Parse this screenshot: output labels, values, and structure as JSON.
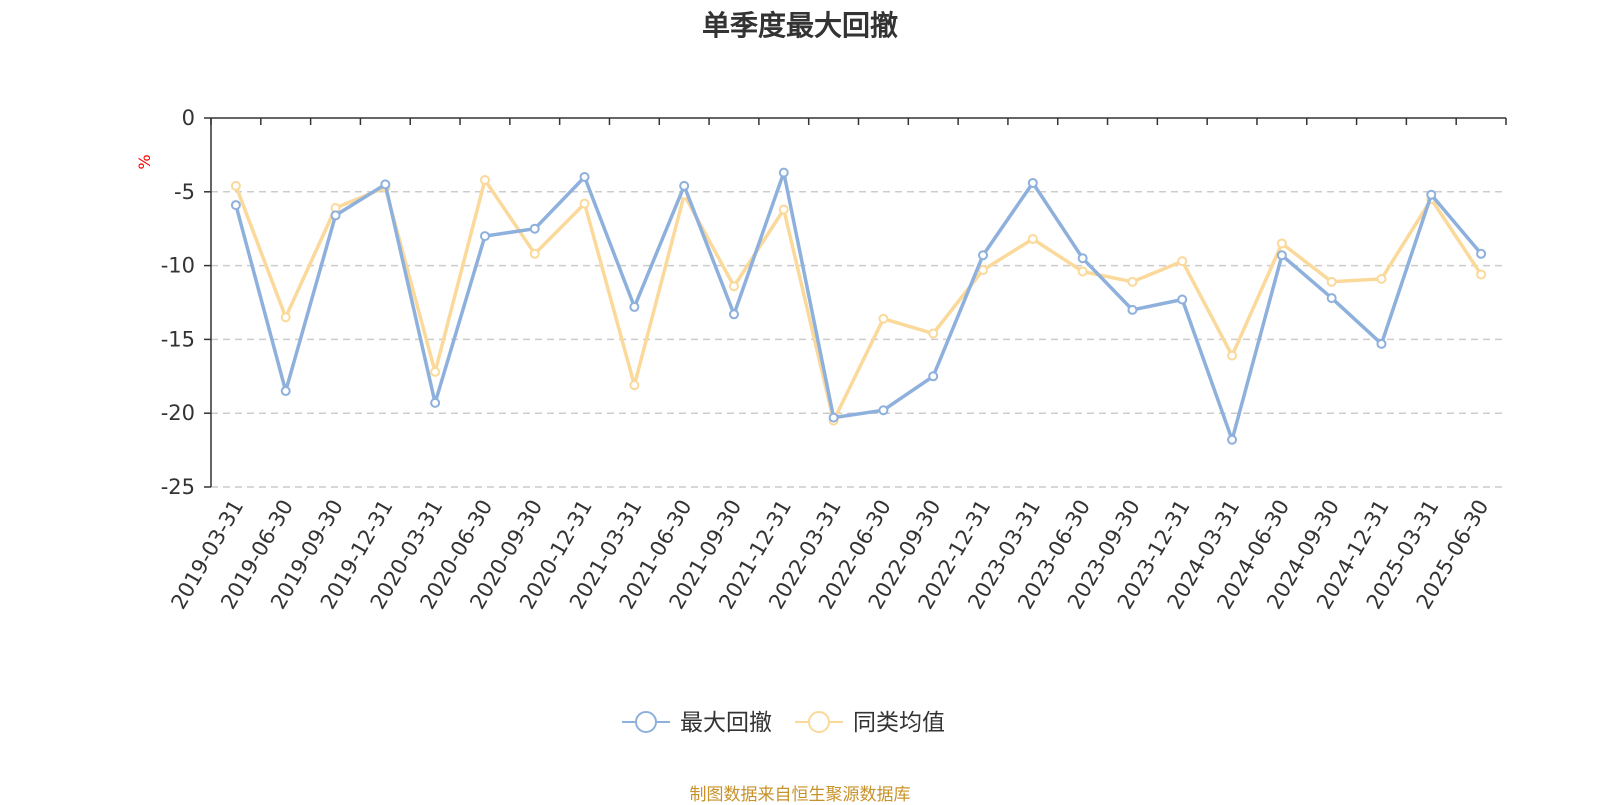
{
  "chart_data": {
    "type": "line",
    "title": "单季度最大回撤",
    "ylabel": "%",
    "ylim": [
      -25,
      0
    ],
    "yticks": [
      0,
      -5,
      -10,
      -15,
      -20,
      -25
    ],
    "grid": true,
    "legend_position": "bottom",
    "categories": [
      "2019-03-31",
      "2019-06-30",
      "2019-09-30",
      "2019-12-31",
      "2020-03-31",
      "2020-06-30",
      "2020-09-30",
      "2020-12-31",
      "2021-03-31",
      "2021-06-30",
      "2021-09-30",
      "2021-12-31",
      "2022-03-31",
      "2022-06-30",
      "2022-09-30",
      "2022-12-31",
      "2023-03-31",
      "2023-06-30",
      "2023-09-30",
      "2023-12-31",
      "2024-03-31",
      "2024-06-30",
      "2024-09-30",
      "2024-12-31",
      "2025-03-31",
      "2025-06-30"
    ],
    "series": [
      {
        "name": "最大回撤",
        "color": "#8eb0dc",
        "values": [
          -5.9,
          -18.5,
          -6.6,
          -4.5,
          -19.3,
          -8.0,
          -7.5,
          -4.0,
          -12.8,
          -4.6,
          -13.3,
          -3.7,
          -20.3,
          -19.8,
          -17.5,
          -9.3,
          -4.4,
          -9.5,
          -13.0,
          -12.3,
          -21.8,
          -9.3,
          -12.2,
          -15.3,
          -5.2,
          -9.2
        ]
      },
      {
        "name": "同类均值",
        "color": "#fbd99a",
        "values": [
          -4.6,
          -13.5,
          -6.1,
          -4.7,
          -17.2,
          -4.2,
          -9.2,
          -5.8,
          -18.1,
          -5.2,
          -11.4,
          -6.2,
          -20.5,
          -13.6,
          -14.6,
          -10.3,
          -8.2,
          -10.4,
          -11.1,
          -9.7,
          -16.1,
          -8.5,
          -11.1,
          -10.9,
          -5.5,
          -10.6
        ]
      }
    ],
    "source": "制图数据来自恒生聚源数据库"
  }
}
